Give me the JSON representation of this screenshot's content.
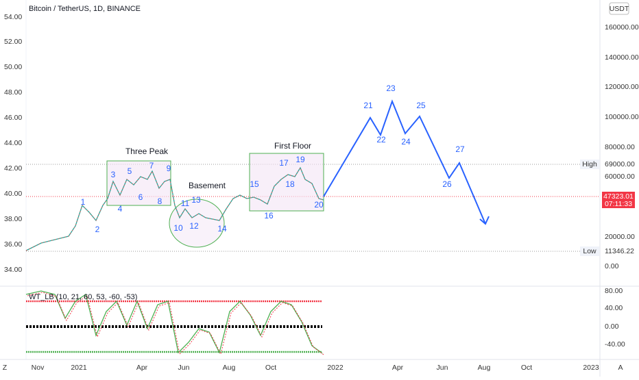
{
  "header": {
    "title": "Bitcoin / TetherUS, 1D, BINANCE",
    "currency": "USDT"
  },
  "left_axis": {
    "labels": [
      "54.00",
      "52.00",
      "50.00",
      "48.00",
      "46.00",
      "44.00",
      "42.00",
      "40.00",
      "38.00",
      "36.00",
      "34.00"
    ]
  },
  "right_axis": {
    "labels": [
      "160000.00",
      "140000.00",
      "120000.00",
      "100000.00",
      "80000.00",
      "60000.00",
      "20000.00",
      "0.00"
    ],
    "high": {
      "label": "High",
      "value": "69000.00"
    },
    "low": {
      "label": "Low",
      "value": "11346.22"
    },
    "last_price": {
      "value": "47323.01",
      "countdown": "07:11:33"
    }
  },
  "annotations": [
    "Three Peak",
    "Basement",
    "First Floor"
  ],
  "wave_labels": [
    "1",
    "2",
    "3",
    "4",
    "5",
    "6",
    "7",
    "8",
    "9",
    "10",
    "11",
    "12",
    "13",
    "14",
    "15",
    "16",
    "17",
    "18",
    "19",
    "20",
    "21",
    "22",
    "23",
    "24",
    "25",
    "26",
    "27"
  ],
  "indicator": {
    "title": "WT_LB (10, 21, 60, 53, -60, -53)",
    "labels": [
      "80.00",
      "40.00",
      "0.00",
      "-40.00"
    ]
  },
  "time_axis": {
    "labels": [
      "Nov",
      "2021",
      "Apr",
      "Jun",
      "Aug",
      "Oct",
      "2022",
      "Apr",
      "Jun",
      "Aug",
      "Oct",
      "2023"
    ]
  },
  "corner": {
    "left": "Z",
    "right": "A"
  }
}
